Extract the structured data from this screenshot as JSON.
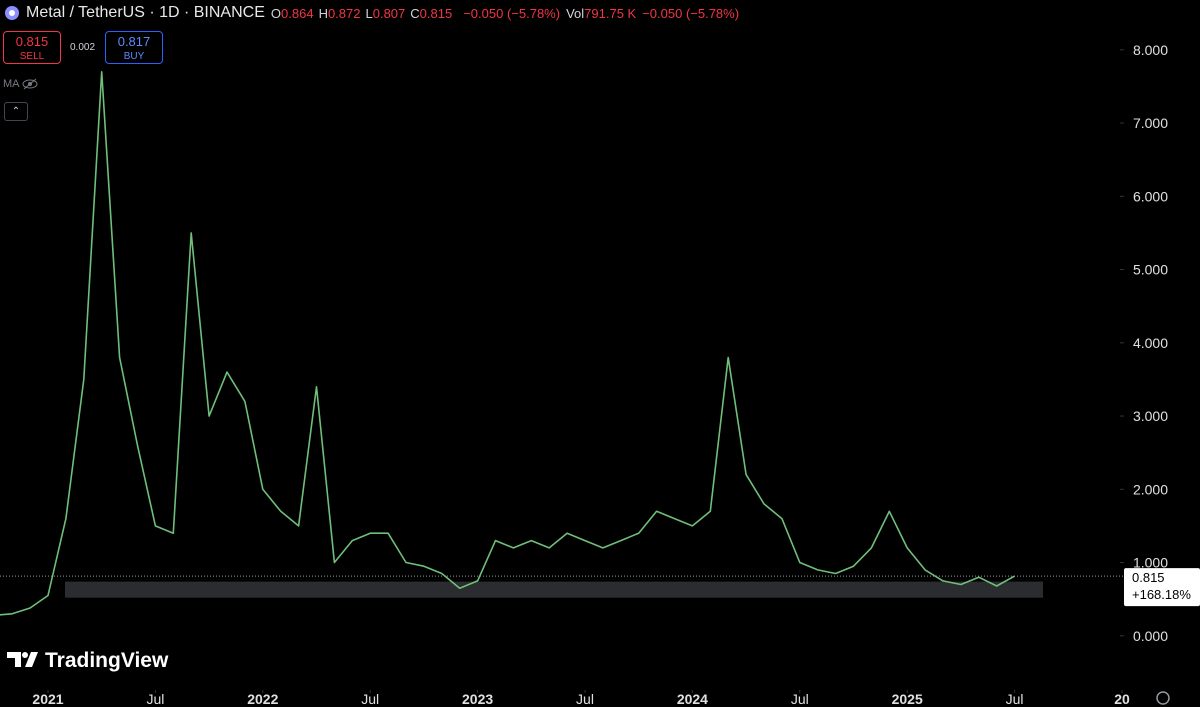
{
  "header": {
    "symbol": "Metal / TetherUS · 1D · BINANCE",
    "ohlc": [
      {
        "key": "O",
        "value": "0.864"
      },
      {
        "key": "H",
        "value": "0.872"
      },
      {
        "key": "L",
        "value": "0.807"
      },
      {
        "key": "C",
        "value": "0.815"
      }
    ],
    "change": "−0.050 (−5.78%)",
    "vol_label": "Vol",
    "volume": "791.75 K",
    "vol_change": "−0.050 (−5.78%)"
  },
  "trade": {
    "sell_price": "0.815",
    "sell_label": "SELL",
    "spread": "0.002",
    "buy_price": "0.817",
    "buy_label": "BUY"
  },
  "indicator": "MA",
  "brand": "TradingView",
  "chart_data": {
    "type": "line",
    "x": [
      "2020-10",
      "2020-11",
      "2020-12",
      "2021-01",
      "2021-02",
      "2021-03",
      "2021-04",
      "2021-05",
      "2021-06",
      "2021-07",
      "2021-08",
      "2021-09",
      "2021-10",
      "2021-11",
      "2021-12",
      "2022-01",
      "2022-02",
      "2022-03",
      "2022-04",
      "2022-05",
      "2022-06",
      "2022-07",
      "2022-08",
      "2022-09",
      "2022-10",
      "2022-11",
      "2022-12",
      "2023-01",
      "2023-02",
      "2023-03",
      "2023-04",
      "2023-05",
      "2023-06",
      "2023-07",
      "2023-08",
      "2023-09",
      "2023-10",
      "2023-11",
      "2023-12",
      "2024-01",
      "2024-02",
      "2024-03",
      "2024-04",
      "2024-05",
      "2024-06",
      "2024-07",
      "2024-08",
      "2024-09",
      "2024-10",
      "2024-11",
      "2024-12",
      "2025-01",
      "2025-02",
      "2025-03",
      "2025-04",
      "2025-05",
      "2025-06",
      "2025-07"
    ],
    "series": [
      {
        "name": "Metal / TetherUS",
        "color": "#6fbf7a",
        "values": [
          0.28,
          0.3,
          0.38,
          0.55,
          1.6,
          3.5,
          7.7,
          3.8,
          2.6,
          1.5,
          1.4,
          5.5,
          3.0,
          3.6,
          3.2,
          2.0,
          1.7,
          1.5,
          3.4,
          1.0,
          1.3,
          1.4,
          1.4,
          1.0,
          0.95,
          0.85,
          0.65,
          0.75,
          1.3,
          1.2,
          1.3,
          1.2,
          1.4,
          1.3,
          1.2,
          1.3,
          1.4,
          1.7,
          1.6,
          1.5,
          1.7,
          3.8,
          2.2,
          1.8,
          1.6,
          1.0,
          0.9,
          0.85,
          0.95,
          1.2,
          1.7,
          1.2,
          0.9,
          0.75,
          0.7,
          0.8,
          0.68,
          0.815
        ]
      }
    ],
    "ylim": [
      -0.74,
      8.68
    ],
    "yticks": [
      {
        "value": 0,
        "label": "0.000"
      },
      {
        "value": 1,
        "label": "1.000"
      },
      {
        "value": 2,
        "label": "2.000"
      },
      {
        "value": 3,
        "label": "3.000"
      },
      {
        "value": 4,
        "label": "4.000"
      },
      {
        "value": 5,
        "label": "5.000"
      },
      {
        "value": 6,
        "label": "6.000"
      },
      {
        "value": 7,
        "label": "7.000"
      },
      {
        "value": 8,
        "label": "8.000"
      }
    ],
    "xticks": [
      {
        "value": "2021-01",
        "label": "2021"
      },
      {
        "value": "2021-07",
        "label": "Jul"
      },
      {
        "value": "2022-01",
        "label": "2022"
      },
      {
        "value": "2022-07",
        "label": "Jul"
      },
      {
        "value": "2023-01",
        "label": "2023"
      },
      {
        "value": "2023-07",
        "label": "Jul"
      },
      {
        "value": "2024-01",
        "label": "2024"
      },
      {
        "value": "2024-07",
        "label": "Jul"
      },
      {
        "value": "2025-01",
        "label": "2025"
      },
      {
        "value": "2025-07",
        "label": "Jul"
      },
      {
        "value": "2026-01",
        "label": "20"
      }
    ],
    "last_price": 0.815,
    "last_change": "+168.18%",
    "zone": {
      "low": 0.52,
      "high": 0.74
    }
  }
}
